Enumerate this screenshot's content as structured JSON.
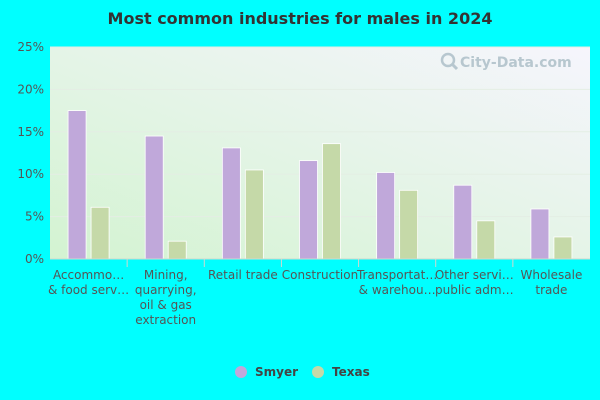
{
  "chart_data": {
    "type": "bar",
    "title": "Most common industries for males in 2024",
    "categories": [
      [
        "Accommo…",
        "& food serv…"
      ],
      [
        "Mining,",
        "quarrying,",
        "oil & gas",
        "extraction"
      ],
      [
        "Retail trade"
      ],
      [
        "Construction"
      ],
      [
        "Transportat…",
        "& warehou…"
      ],
      [
        "Other servi…",
        "public adm…"
      ],
      [
        "Wholesale",
        "trade"
      ]
    ],
    "series": [
      {
        "name": "Smyer",
        "color": "#c0a8da",
        "values": [
          17.5,
          14.5,
          13.1,
          11.6,
          10.2,
          8.7,
          5.9
        ]
      },
      {
        "name": "Texas",
        "color": "#c5d9a8",
        "values": [
          6.1,
          2.1,
          10.5,
          13.6,
          8.1,
          4.5,
          2.6
        ]
      }
    ],
    "ylim": [
      0,
      25
    ],
    "yticks": [
      {
        "value": 0,
        "label": "0%"
      },
      {
        "value": 5,
        "label": "5%"
      },
      {
        "value": 10,
        "label": "10%"
      },
      {
        "value": 15,
        "label": "15%"
      },
      {
        "value": 20,
        "label": "20%"
      },
      {
        "value": 25,
        "label": "25%"
      }
    ],
    "legend_position": "bottom-center",
    "grid": true,
    "watermark": "City-Data.com",
    "watermark_icon": "magnifier-icon"
  }
}
